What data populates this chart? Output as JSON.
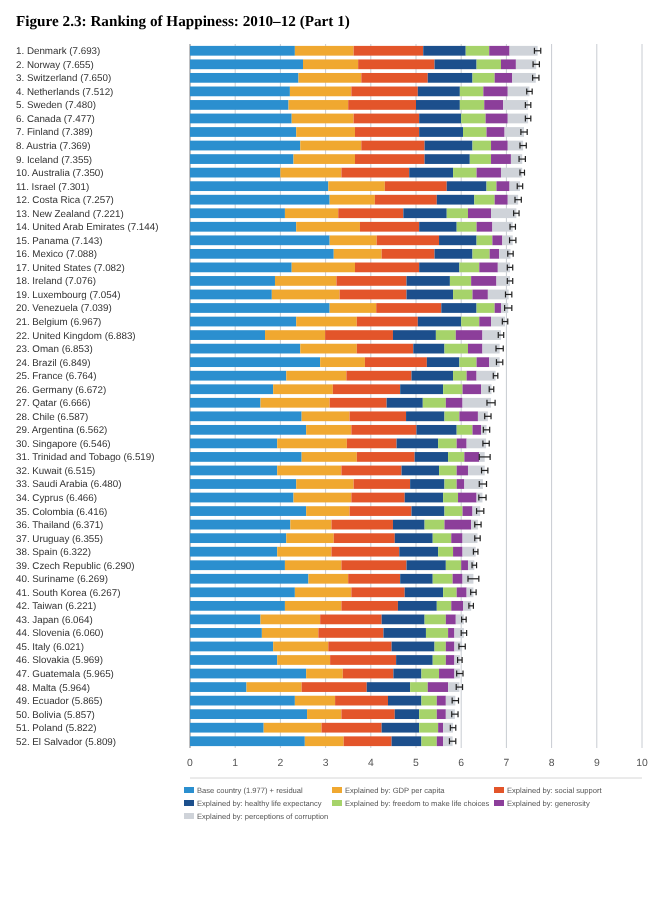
{
  "chart_data": {
    "type": "bar",
    "orientation": "horizontal",
    "stacked": true,
    "title": "Figure 2.3: Ranking of Happiness: 2010–12 (Part 1)",
    "categories": [
      "1. Denmark (7.693)",
      "2. Norway (7.655)",
      "3. Switzerland (7.650)",
      "4. Netherlands (7.512)",
      "5. Sweden (7.480)",
      "6. Canada (7.477)",
      "7. Finland (7.389)",
      "8. Austria (7.369)",
      "9. Iceland (7.355)",
      "10. Australia (7.350)",
      "11. Israel (7.301)",
      "12. Costa Rica (7.257)",
      "13. New Zealand (7.221)",
      "14. United Arab Emirates (7.144)",
      "15. Panama (7.143)",
      "16. Mexico (7.088)",
      "17. United States (7.082)",
      "18. Ireland (7.076)",
      "19. Luxembourg (7.054)",
      "20. Venezuela (7.039)",
      "21. Belgium (6.967)",
      "22. United Kingdom (6.883)",
      "23. Oman (6.853)",
      "24. Brazil (6.849)",
      "25. France (6.764)",
      "26. Germany (6.672)",
      "27. Qatar (6.666)",
      "28. Chile (6.587)",
      "29. Argentina (6.562)",
      "30. Singapore (6.546)",
      "31. Trinidad and Tobago (6.519)",
      "32. Kuwait (6.515)",
      "33. Saudi Arabia (6.480)",
      "34. Cyprus (6.466)",
      "35. Colombia (6.416)",
      "36. Thailand (6.371)",
      "37. Uruguay (6.355)",
      "38. Spain (6.322)",
      "39. Czech Republic (6.290)",
      "40. Suriname (6.269)",
      "41. South Korea (6.267)",
      "42. Taiwan (6.221)",
      "43. Japan (6.064)",
      "44. Slovenia (6.060)",
      "45. Italy (6.021)",
      "46. Slovakia (5.969)",
      "47. Guatemala (5.965)",
      "48. Malta (5.964)",
      "49. Ecuador (5.865)",
      "50. Bolivia (5.857)",
      "51. Poland (5.822)",
      "52. El Salvador (5.809)"
    ],
    "series": [
      {
        "name": "Base country (1.977) + residual",
        "color": "#2b8fcf",
        "values": [
          2.32,
          2.5,
          2.4,
          2.21,
          2.18,
          2.25,
          2.35,
          2.44,
          2.29,
          2.0,
          3.06,
          3.09,
          2.1,
          2.35,
          3.09,
          3.18,
          2.25,
          1.88,
          1.81,
          3.09,
          2.35,
          1.66,
          2.44,
          2.88,
          2.13,
          1.84,
          1.56,
          2.47,
          2.57,
          1.93,
          2.47,
          1.93,
          2.35,
          2.29,
          2.57,
          2.22,
          2.13,
          1.93,
          2.1,
          2.62,
          2.32,
          2.1,
          1.56,
          1.59,
          1.84,
          1.93,
          2.57,
          1.25,
          2.32,
          2.59,
          1.63,
          2.54
        ]
      },
      {
        "name": "Explained by: GDP per capita",
        "color": "#f0a830",
        "values": [
          1.3,
          1.22,
          1.39,
          1.36,
          1.32,
          1.37,
          1.3,
          1.35,
          1.36,
          1.35,
          1.25,
          1.0,
          1.18,
          1.41,
          1.04,
          1.06,
          1.4,
          1.36,
          1.5,
          1.03,
          1.34,
          1.33,
          1.25,
          0.99,
          1.33,
          1.32,
          1.53,
          1.06,
          1.0,
          1.54,
          1.22,
          1.42,
          1.27,
          1.28,
          0.96,
          0.91,
          1.05,
          1.2,
          1.25,
          0.88,
          1.25,
          1.25,
          1.32,
          1.25,
          1.22,
          1.17,
          0.81,
          1.22,
          0.89,
          0.76,
          1.28,
          0.86
        ]
      },
      {
        "name": "Explained by: social support",
        "color": "#e3552a",
        "values": [
          1.54,
          1.69,
          1.47,
          1.47,
          1.5,
          1.45,
          1.42,
          1.4,
          1.54,
          1.5,
          1.37,
          1.37,
          1.44,
          1.31,
          1.38,
          1.17,
          1.42,
          1.55,
          1.48,
          1.44,
          1.35,
          1.5,
          1.25,
          1.37,
          1.44,
          1.49,
          1.26,
          1.25,
          1.44,
          1.1,
          1.28,
          1.33,
          1.25,
          1.18,
          1.37,
          1.36,
          1.35,
          1.5,
          1.44,
          1.15,
          1.18,
          1.25,
          1.36,
          1.44,
          1.4,
          1.46,
          1.12,
          1.44,
          1.17,
          1.18,
          1.33,
          1.06
        ]
      },
      {
        "name": "Explained by: healthy life expectancy",
        "color": "#1c4f8c",
        "values": [
          0.94,
          0.93,
          0.99,
          0.93,
          0.97,
          0.93,
          0.97,
          1.06,
          1.0,
          0.97,
          0.88,
          0.83,
          0.96,
          0.83,
          0.83,
          0.84,
          0.89,
          0.96,
          1.03,
          0.78,
          0.96,
          0.95,
          0.69,
          0.72,
          0.92,
          0.95,
          0.8,
          0.85,
          0.89,
          0.92,
          0.74,
          0.83,
          0.76,
          0.85,
          0.73,
          0.7,
          0.84,
          0.86,
          0.87,
          0.72,
          0.85,
          0.86,
          0.95,
          0.94,
          0.95,
          0.81,
          0.62,
          0.96,
          0.74,
          0.54,
          0.83,
          0.66
        ]
      },
      {
        "name": "Explained by: freedom to make life choices",
        "color": "#a6d36a",
        "values": [
          0.52,
          0.54,
          0.49,
          0.52,
          0.54,
          0.54,
          0.52,
          0.41,
          0.47,
          0.52,
          0.22,
          0.45,
          0.47,
          0.44,
          0.35,
          0.38,
          0.44,
          0.47,
          0.43,
          0.4,
          0.4,
          0.44,
          0.52,
          0.38,
          0.3,
          0.43,
          0.51,
          0.33,
          0.35,
          0.41,
          0.36,
          0.39,
          0.27,
          0.33,
          0.4,
          0.44,
          0.41,
          0.33,
          0.34,
          0.44,
          0.3,
          0.32,
          0.47,
          0.49,
          0.25,
          0.29,
          0.39,
          0.39,
          0.34,
          0.39,
          0.42,
          0.34
        ]
      },
      {
        "name": "Explained by: generosity",
        "color": "#8c3e9a",
        "values": [
          0.45,
          0.33,
          0.39,
          0.54,
          0.42,
          0.49,
          0.4,
          0.37,
          0.44,
          0.54,
          0.29,
          0.29,
          0.51,
          0.35,
          0.22,
          0.21,
          0.41,
          0.56,
          0.34,
          0.14,
          0.26,
          0.59,
          0.32,
          0.28,
          0.22,
          0.41,
          0.37,
          0.41,
          0.19,
          0.22,
          0.33,
          0.25,
          0.17,
          0.41,
          0.22,
          0.59,
          0.25,
          0.21,
          0.15,
          0.22,
          0.22,
          0.26,
          0.22,
          0.14,
          0.19,
          0.19,
          0.34,
          0.45,
          0.2,
          0.2,
          0.11,
          0.14
        ]
      },
      {
        "name": "Explained by: perceptions of corruption",
        "color": "#cfd3d9",
        "values": [
          0.62,
          0.45,
          0.52,
          0.48,
          0.55,
          0.45,
          0.43,
          0.34,
          0.25,
          0.47,
          0.23,
          0.23,
          0.56,
          0.45,
          0.23,
          0.25,
          0.27,
          0.3,
          0.46,
          0.16,
          0.31,
          0.41,
          0.38,
          0.23,
          0.42,
          0.23,
          0.63,
          0.22,
          0.12,
          0.43,
          0.12,
          0.37,
          0.41,
          0.13,
          0.17,
          0.15,
          0.33,
          0.29,
          0.14,
          0.24,
          0.15,
          0.18,
          0.18,
          0.21,
          0.17,
          0.12,
          0.12,
          0.25,
          0.21,
          0.2,
          0.22,
          0.21
        ],
        "errors": [
          0.07,
          0.07,
          0.07,
          0.06,
          0.06,
          0.06,
          0.07,
          0.07,
          0.07,
          0.05,
          0.06,
          0.07,
          0.06,
          0.06,
          0.07,
          0.06,
          0.06,
          0.06,
          0.07,
          0.08,
          0.06,
          0.06,
          0.08,
          0.07,
          0.05,
          0.05,
          0.09,
          0.07,
          0.07,
          0.07,
          0.12,
          0.07,
          0.08,
          0.08,
          0.08,
          0.07,
          0.06,
          0.05,
          0.05,
          0.12,
          0.06,
          0.05,
          0.05,
          0.06,
          0.07,
          0.05,
          0.07,
          0.07,
          0.07,
          0.07,
          0.06,
          0.07
        ]
      }
    ],
    "xlim": [
      0,
      10
    ],
    "xticks": [
      0,
      1,
      2,
      3,
      4,
      5,
      6,
      7,
      8,
      9,
      10
    ],
    "grid": "x",
    "legend": "bottom"
  }
}
